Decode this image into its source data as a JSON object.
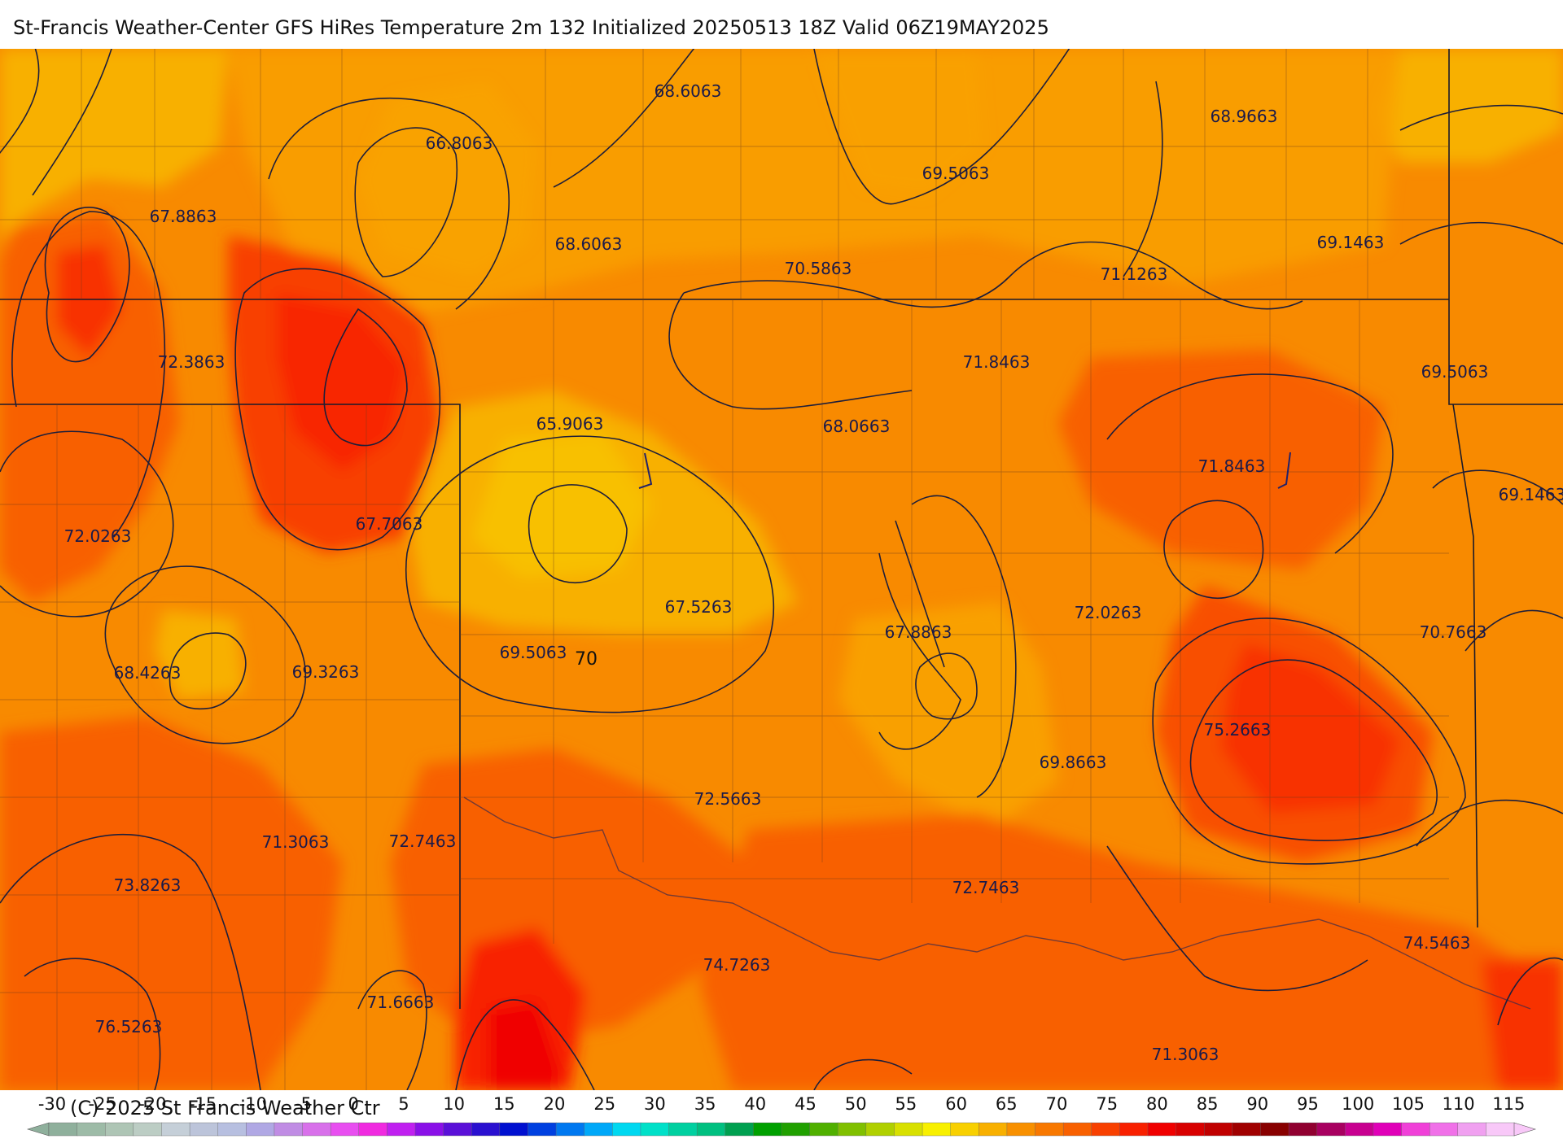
{
  "title": "St-Francis Weather-Center GFS HiRes Temperature 2m  132 Initialized 20250513 18Z Valid 06Z19MAY2025",
  "copyright": "(C) 2025 St Francis Weather Ctr",
  "contour_label": "70",
  "point_labels": [
    "68.6063",
    "68.9663",
    "66.8063",
    "69.5063",
    "67.8863",
    "68.6063",
    "70.5863",
    "71.1263",
    "69.1463",
    "72.3863",
    "71.8463",
    "69.5063",
    "65.9063",
    "68.0663",
    "71.8463",
    "69.1463",
    "67.7063",
    "72.0263",
    "67.5263",
    "67.8863",
    "72.0263",
    "70.7663",
    "69.5063",
    "68.4263",
    "69.3263",
    "75.2663",
    "69.8663",
    "72.5663",
    "71.3063",
    "72.7463",
    "73.8263",
    "72.7463",
    "74.5463",
    "74.7263",
    "71.6663",
    "76.5263",
    "71.3063"
  ],
  "colorbar": {
    "ticks": [
      "-30",
      "-25",
      "-20",
      "-15",
      "-10",
      "-5",
      "0",
      "5",
      "10",
      "15",
      "20",
      "25",
      "30",
      "35",
      "40",
      "45",
      "50",
      "55",
      "60",
      "65",
      "70",
      "75",
      "80",
      "85",
      "90",
      "95",
      "100",
      "105",
      "110",
      "115"
    ],
    "colors": [
      "#8fb09c",
      "#9dbba7",
      "#aec5b5",
      "#bccdc4",
      "#c5cfd8",
      "#bcc4da",
      "#b7bfe0",
      "#b0a8e4",
      "#c08ce4",
      "#d870ea",
      "#e84ef0",
      "#f02ae0",
      "#c020f0",
      "#8a10e8",
      "#5a10d8",
      "#2a10d0",
      "#0010d0",
      "#0040e0",
      "#0078f0",
      "#00a8f8",
      "#00d8f0",
      "#00e0c8",
      "#00d0a0",
      "#00c080",
      "#00a050",
      "#00a000",
      "#20a000",
      "#50b000",
      "#80c000",
      "#b0d000",
      "#d8e000",
      "#f8f000",
      "#f8d000",
      "#f8b000",
      "#f89000",
      "#f87800",
      "#f86000",
      "#f84000",
      "#f82000",
      "#f00000",
      "#d80000",
      "#c00000",
      "#a00000",
      "#880000",
      "#900030",
      "#a80060",
      "#c80090",
      "#e000b8",
      "#f040d8",
      "#f070e8",
      "#f0a0f0",
      "#f8c8f8"
    ]
  }
}
